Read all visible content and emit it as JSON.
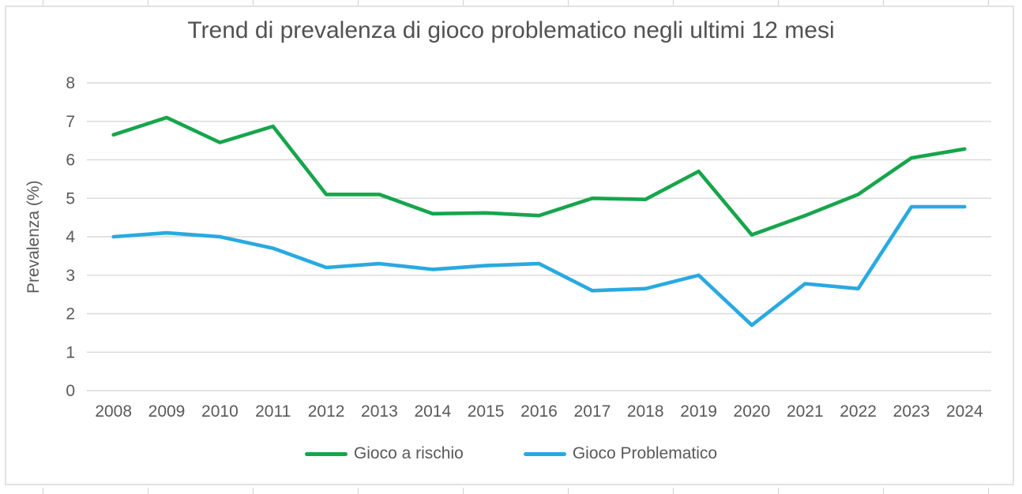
{
  "title": "Trend di prevalenza di gioco problematico negli ultimi 12 mesi",
  "colors": {
    "series_green": "#17A54C",
    "series_blue": "#29A9E1",
    "gridline": "#D9D9D9",
    "axis_text": "#595959",
    "title_text": "#525252",
    "frame_border": "#E2E2E2",
    "worksheet_line": "#D0D0D0"
  },
  "chart_data": {
    "type": "line",
    "title": "Trend di prevalenza di gioco problematico negli ultimi 12 mesi",
    "xlabel": "",
    "ylabel": "Prevalenza (%)",
    "ylim": [
      0,
      8
    ],
    "yticks": [
      0,
      1,
      2,
      3,
      4,
      5,
      6,
      7,
      8
    ],
    "grid": "horizontal",
    "legend_position": "bottom",
    "categories": [
      "2008",
      "2009",
      "2010",
      "2011",
      "2012",
      "2013",
      "2014",
      "2015",
      "2016",
      "2017",
      "2018",
      "2019",
      "2020",
      "2021",
      "2022",
      "2023",
      "2024"
    ],
    "series": [
      {
        "name": "Gioco a rischio",
        "color": "#17A54C",
        "values": [
          6.65,
          7.1,
          6.45,
          6.87,
          5.1,
          5.1,
          4.6,
          4.62,
          4.55,
          5.0,
          4.97,
          5.7,
          4.05,
          4.55,
          5.1,
          6.05,
          6.28
        ]
      },
      {
        "name": "Gioco Problematico",
        "color": "#29A9E1",
        "values": [
          4.0,
          4.1,
          4.0,
          3.7,
          3.2,
          3.3,
          3.15,
          3.25,
          3.3,
          2.6,
          2.65,
          3.0,
          1.7,
          2.78,
          2.65,
          4.78,
          4.78
        ]
      }
    ]
  }
}
